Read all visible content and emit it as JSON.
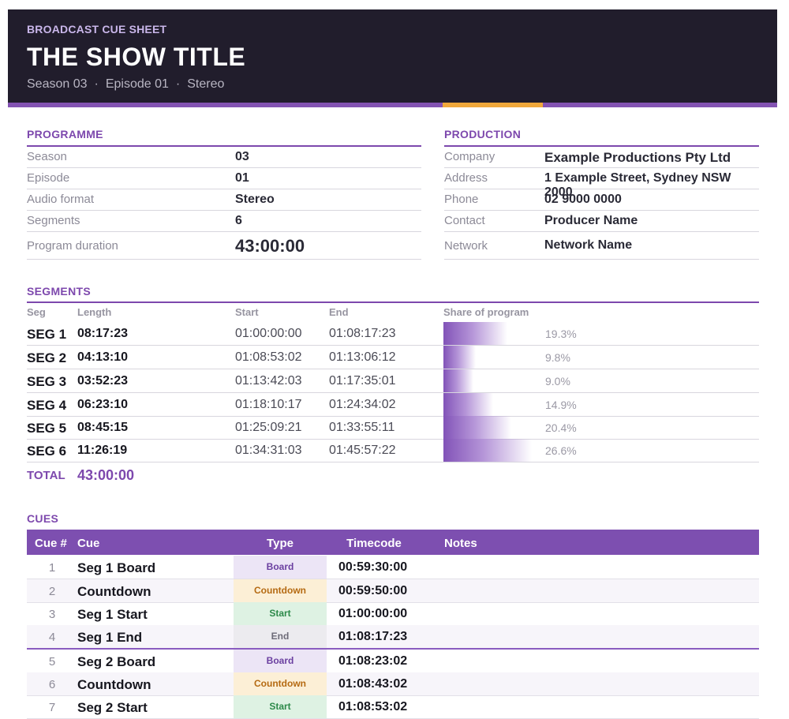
{
  "header": {
    "eyebrow": "BROADCAST CUE SHEET",
    "title": "THE SHOW TITLE",
    "season": "Season 03",
    "episode": "Episode 01",
    "audio": "Stereo",
    "separator": "·"
  },
  "programme": {
    "label": "PROGRAMME",
    "rows": [
      {
        "key": "Season",
        "value": "03"
      },
      {
        "key": "Episode",
        "value": "01"
      },
      {
        "key": "Audio format",
        "value": "Stereo"
      },
      {
        "key": "Segments",
        "value": "6"
      },
      {
        "key": "Program duration",
        "value": "43:00:00"
      }
    ]
  },
  "production": {
    "label": "PRODUCTION",
    "rows": [
      {
        "key": "Company",
        "value": "Example Productions Pty Ltd"
      },
      {
        "key": "Address",
        "value": "1 Example Street, Sydney NSW 2000"
      },
      {
        "key": "Phone",
        "value": "02 9000 0000"
      },
      {
        "key": "Contact",
        "value": "Producer Name"
      },
      {
        "key": "Network",
        "value": "Network Name"
      }
    ]
  },
  "segments": {
    "label": "SEGMENTS",
    "columns": {
      "seg": "Seg",
      "length": "Length",
      "start": "Start",
      "end": "End",
      "share": "Share of program"
    },
    "rows": [
      {
        "seg": "SEG 1",
        "length": "08:17:23",
        "start": "01:00:00:00",
        "end": "01:08:17:23",
        "share_label": "19.3%",
        "share": 19.3
      },
      {
        "seg": "SEG 2",
        "length": "04:13:10",
        "start": "01:08:53:02",
        "end": "01:13:06:12",
        "share_label": "9.8%",
        "share": 9.8
      },
      {
        "seg": "SEG 3",
        "length": "03:52:23",
        "start": "01:13:42:03",
        "end": "01:17:35:01",
        "share_label": "9.0%",
        "share": 9.0
      },
      {
        "seg": "SEG 4",
        "length": "06:23:10",
        "start": "01:18:10:17",
        "end": "01:24:34:02",
        "share_label": "14.9%",
        "share": 14.9
      },
      {
        "seg": "SEG 5",
        "length": "08:45:15",
        "start": "01:25:09:21",
        "end": "01:33:55:11",
        "share_label": "20.4%",
        "share": 20.4
      },
      {
        "seg": "SEG 6",
        "length": "11:26:19",
        "start": "01:34:31:03",
        "end": "01:45:57:22",
        "share_label": "26.6%",
        "share": 26.6
      }
    ],
    "total_label": "TOTAL",
    "total_value": "43:00:00"
  },
  "cues": {
    "label": "CUES",
    "columns": {
      "num": "Cue #",
      "cue": "Cue",
      "type": "Type",
      "timecode": "Timecode",
      "notes": "Notes"
    },
    "type_colors": {
      "Board": {
        "bg": "#ece5f6",
        "fg": "#6a3fa0"
      },
      "Countdown": {
        "bg": "#fcefd6",
        "fg": "#b56a12"
      },
      "Start": {
        "bg": "#def2e3",
        "fg": "#2d8a4a"
      },
      "End": {
        "bg": "#ecebef",
        "fg": "#6d6b78"
      }
    },
    "rows": [
      {
        "num": "1",
        "cue": "Seg 1 Board",
        "type": "Board",
        "timecode": "00:59:30:00"
      },
      {
        "num": "2",
        "cue": "Countdown",
        "type": "Countdown",
        "timecode": "00:59:50:00"
      },
      {
        "num": "3",
        "cue": "Seg 1 Start",
        "type": "Start",
        "timecode": "01:00:00:00"
      },
      {
        "num": "4",
        "cue": "Seg 1 End",
        "type": "End",
        "timecode": "01:08:17:23"
      },
      {
        "num": "5",
        "cue": "Seg 2 Board",
        "type": "Board",
        "timecode": "01:08:23:02"
      },
      {
        "num": "6",
        "cue": "Countdown",
        "type": "Countdown",
        "timecode": "01:08:43:02"
      },
      {
        "num": "7",
        "cue": "Seg 2 Start",
        "type": "Start",
        "timecode": "01:08:53:02"
      }
    ]
  },
  "colors": {
    "accent": "#7d48ad",
    "gold": "#f0a83b",
    "header_bg": "#211d2c"
  }
}
